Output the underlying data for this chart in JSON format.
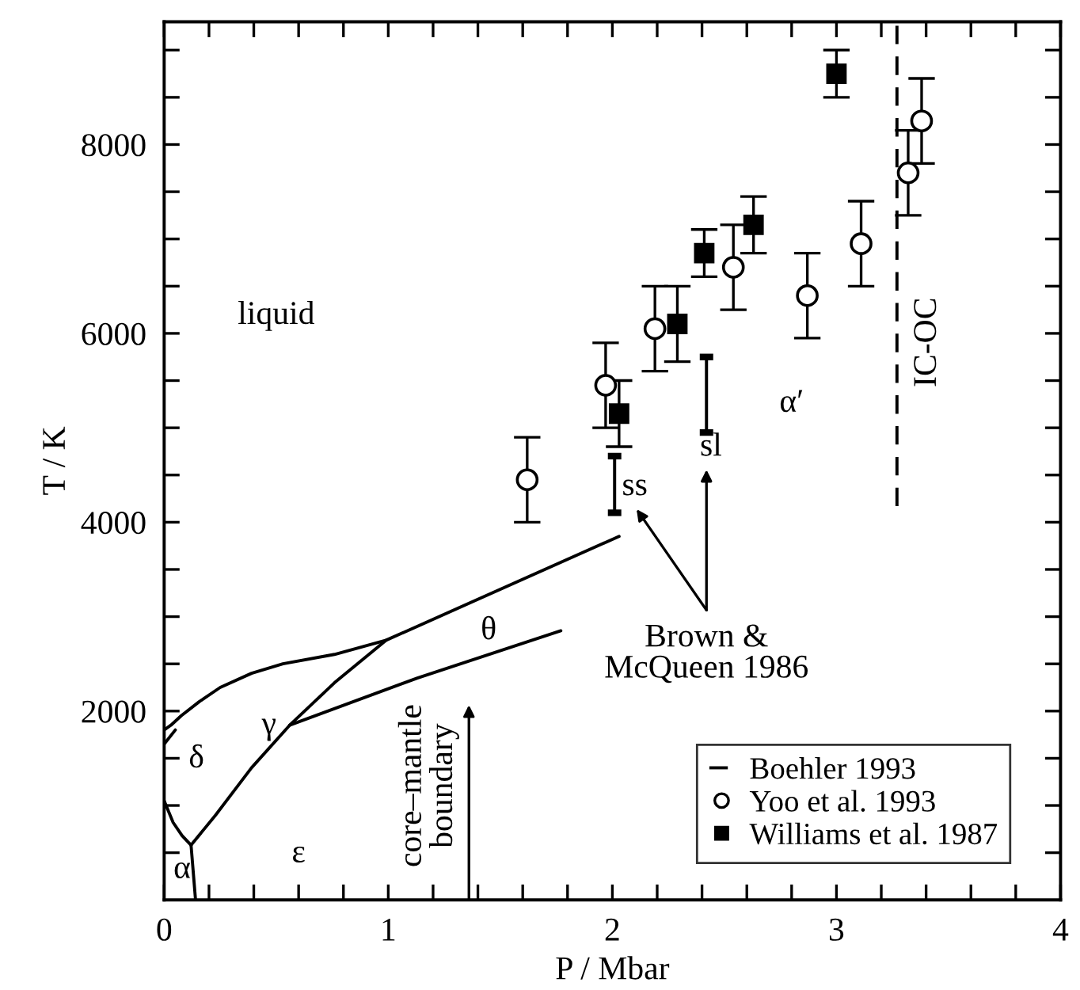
{
  "chart_data": {
    "type": "scatter",
    "xlabel": "P / Mbar",
    "ylabel": "T / K",
    "xlim": [
      0,
      4
    ],
    "ylim": [
      0,
      9300
    ],
    "xticks": [
      0,
      {
        "value": 0.2,
        "label": null
      },
      {
        "value": 0.4,
        "label": null
      },
      {
        "value": 0.6,
        "label": null
      },
      {
        "value": 0.8,
        "label": null
      },
      1,
      {
        "value": 1.2,
        "label": null
      },
      {
        "value": 1.4,
        "label": null
      },
      {
        "value": 1.6,
        "label": null
      },
      {
        "value": 1.8,
        "label": null
      },
      2,
      {
        "value": 2.2,
        "label": null
      },
      {
        "value": 2.4,
        "label": null
      },
      {
        "value": 2.6,
        "label": null
      },
      {
        "value": 2.8,
        "label": null
      },
      3,
      {
        "value": 3.2,
        "label": null
      },
      {
        "value": 3.4,
        "label": null
      },
      {
        "value": 3.6,
        "label": null
      },
      {
        "value": 3.8,
        "label": null
      },
      4
    ],
    "yticks": [
      {
        "value": 500,
        "label": null
      },
      {
        "value": 1000,
        "label": null
      },
      {
        "value": 1500,
        "label": null
      },
      2000,
      {
        "value": 2500,
        "label": null
      },
      {
        "value": 3000,
        "label": null
      },
      {
        "value": 3500,
        "label": null
      },
      4000,
      {
        "value": 4500,
        "label": null
      },
      {
        "value": 5000,
        "label": null
      },
      {
        "value": 5500,
        "label": null
      },
      6000,
      {
        "value": 6500,
        "label": null
      },
      {
        "value": 7000,
        "label": null
      },
      {
        "value": 7500,
        "label": null
      },
      8000,
      {
        "value": 8500,
        "label": null
      },
      {
        "value": 9000,
        "label": null
      }
    ],
    "grid": false,
    "legend": "bottom right",
    "series": [
      {
        "name": "Boehler 1993",
        "type": "line",
        "line_style": "dashed",
        "color": "#000000",
        "x": [
          3.27,
          3.27
        ],
        "values": [
          4170,
          9300
        ]
      },
      {
        "name": "Yoo et al. 1993",
        "marker": "circle",
        "color": "#000000",
        "x": [
          1.62,
          1.97,
          2.19,
          2.54,
          2.87,
          3.11,
          3.32,
          3.38
        ],
        "values": [
          4450,
          5450,
          6050,
          6700,
          6400,
          6950,
          7700,
          8250
        ],
        "errors": [
          450,
          450,
          450,
          450,
          450,
          450,
          450,
          450
        ]
      },
      {
        "name": "Williams et al. 1987",
        "marker": "square",
        "color": "#000000",
        "x": [
          2.03,
          2.29,
          2.41,
          2.63,
          3.0
        ],
        "values": [
          5150,
          6100,
          6850,
          7150,
          8750
        ],
        "errors": [
          350,
          400,
          250,
          300,
          250
        ]
      },
      {
        "type": "bar",
        "color": "#000000",
        "x": [
          2.01,
          2.42
        ],
        "base": [
          4100,
          4950
        ],
        "values": [
          600,
          800
        ]
      },
      {
        "type": "line",
        "color": "#000000",
        "x": [
          0.0,
          0.03,
          0.076,
          0.157,
          0.25,
          0.39,
          0.53,
          0.76,
          0.99,
          2.03
        ],
        "values": [
          1800,
          1850,
          1950,
          2100,
          2250,
          2400,
          2500,
          2600,
          2750,
          3850
        ]
      },
      {
        "type": "line",
        "color": "#000000",
        "x": [
          0.0,
          0.05
        ],
        "values": [
          1650,
          1800
        ]
      },
      {
        "type": "line",
        "color": "#000000",
        "x": [
          0.0,
          0.04,
          0.08,
          0.12
        ],
        "values": [
          1050,
          820,
          680,
          580
        ]
      },
      {
        "type": "line",
        "color": "#000000",
        "x": [
          0.12,
          0.14
        ],
        "values": [
          580,
          0
        ]
      },
      {
        "type": "line",
        "color": "#000000",
        "x": [
          0.12,
          0.23,
          0.39,
          0.56,
          0.76,
          0.99
        ],
        "values": [
          580,
          900,
          1400,
          1850,
          2300,
          2750
        ]
      },
      {
        "type": "line",
        "color": "#000000",
        "x": [
          0.56,
          1.13,
          1.77
        ],
        "values": [
          1850,
          2350,
          2850
        ]
      }
    ],
    "annotations": [
      "core–mantle\nboundary",
      "Brown &\nMcQueen 1986",
      "ss",
      "sl",
      "IC-OC",
      "liquid",
      "α′",
      "δ",
      "γ",
      "α",
      "ε",
      "θ"
    ]
  }
}
